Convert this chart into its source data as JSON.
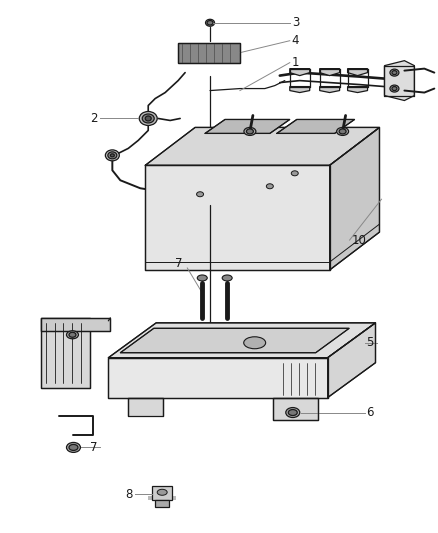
{
  "bg_color": "#ffffff",
  "line_color": "#1a1a1a",
  "fig_width": 4.38,
  "fig_height": 5.33,
  "dpi": 100,
  "label_fontsize": 8.5,
  "callout_lw": 0.7,
  "draw_lw": 0.9
}
